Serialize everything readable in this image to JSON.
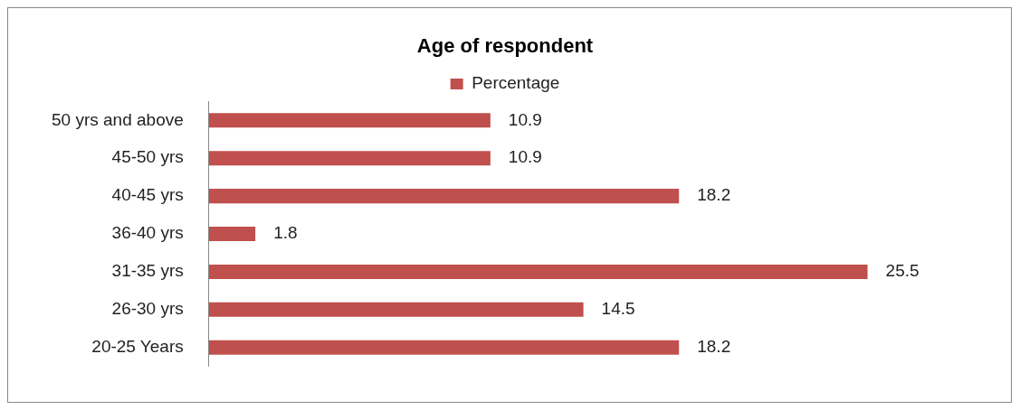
{
  "chart_data": {
    "type": "bar",
    "orientation": "horizontal",
    "title": "Age of respondent",
    "categories": [
      "50 yrs and above",
      "45-50 yrs",
      "40-45 yrs",
      "36-40 yrs",
      "31-35 yrs",
      "26-30 yrs",
      "20-25 Years"
    ],
    "series": [
      {
        "name": "Percentage",
        "color": "#c0504d",
        "values": [
          10.9,
          10.9,
          18.2,
          1.8,
          25.5,
          14.5,
          18.2
        ]
      }
    ],
    "data_labels": true,
    "legend": "top"
  }
}
